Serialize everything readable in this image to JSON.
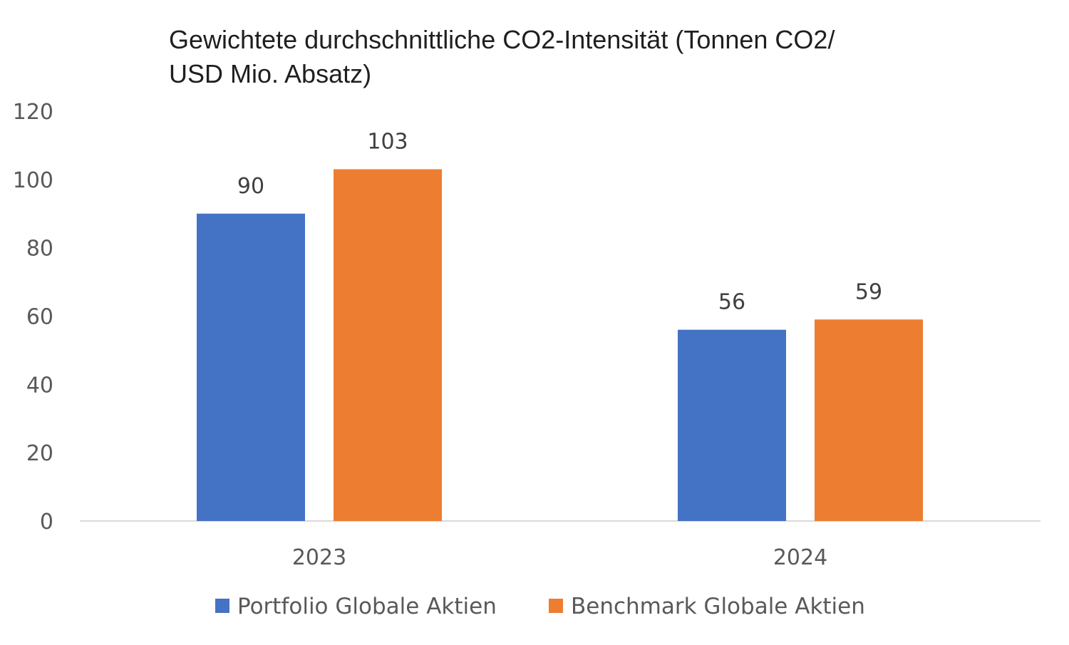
{
  "chart_data": {
    "type": "bar",
    "title_lines": [
      "Gewichtete durchschnittliche CO2-Intensität (Tonnen CO2/",
      "USD Mio. Absatz)"
    ],
    "categories": [
      "2023",
      "2024"
    ],
    "series": [
      {
        "name": "Portfolio Globale Aktien",
        "values": [
          90,
          56
        ],
        "color": "#4472C4"
      },
      {
        "name": "Benchmark Globale Aktien",
        "values": [
          103,
          59
        ],
        "color": "#ED7D31"
      }
    ],
    "yticks": [
      "0",
      "20",
      "40",
      "60",
      "80",
      "100",
      "120"
    ],
    "ylim": [
      0,
      120
    ],
    "xlabel": "",
    "ylabel": "",
    "grid": false,
    "legend_position": "bottom"
  }
}
